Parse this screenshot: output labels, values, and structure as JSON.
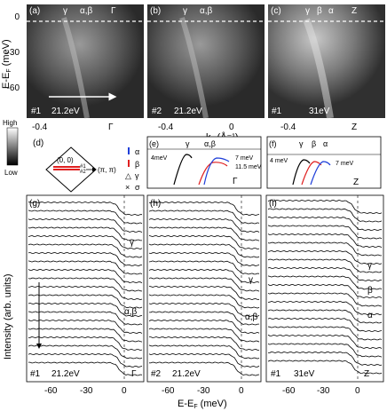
{
  "top_row": {
    "ylabel": "E-E",
    "ylabel_sub": "F",
    "ylabel_unit": " (meV)",
    "yticks": [
      "0",
      "-30",
      "-60"
    ],
    "xlabel": "k",
    "xlabel_sub": "//",
    "xlabel_unit": " (Å⁻¹)",
    "panels": [
      {
        "tag": "(a)",
        "bands": [
          "γ",
          "α,β",
          "Γ"
        ],
        "run": "#1",
        "energy": "21.2eV",
        "xticks": [
          "-0.4",
          "Γ"
        ]
      },
      {
        "tag": "(b)",
        "bands": [
          "γ",
          "α,β"
        ],
        "run": "#2",
        "energy": "21.2eV",
        "xticks": [
          "-0.4",
          "0"
        ]
      },
      {
        "tag": "(c)",
        "bands": [
          "γ",
          "β",
          "α",
          "Z"
        ],
        "run": "#1",
        "energy": "31eV",
        "xticks": [
          "-0.4",
          "Z"
        ]
      }
    ]
  },
  "colorbar": {
    "high": "High",
    "low": "Low"
  },
  "panel_d": {
    "tag": "(d)",
    "origin": "(0, 0)",
    "corner": "(π, π)",
    "cut1": "#1",
    "cut2": "#2",
    "legend": [
      {
        "marker": "|",
        "color": "#1f3fd9",
        "label": "α"
      },
      {
        "marker": "|",
        "color": "#e02020",
        "label": "β"
      },
      {
        "marker": "△",
        "color": "#000000",
        "label": "γ"
      },
      {
        "marker": "×",
        "color": "#000000",
        "label": "σ"
      }
    ]
  },
  "panel_e": {
    "tag": "(e)",
    "bands": [
      "γ",
      "α,β"
    ],
    "gap_left": "4meV",
    "gap_a": "7 meV",
    "gap_b": "11.5 meV",
    "point": "Γ"
  },
  "panel_f": {
    "tag": "(f)",
    "bands": [
      "γ",
      "β",
      "α"
    ],
    "gap_left": "4 meV",
    "gap_right": "7 meV",
    "point": "Z"
  },
  "bottom_row": {
    "ylabel": "Intensity (arb. units)",
    "xlabel": "E-E",
    "xlabel_sub": "F",
    "xlabel_unit": " (meV)",
    "xticks": [
      "-60",
      "-30",
      "0"
    ],
    "panels": [
      {
        "tag": "(g)",
        "run": "#1",
        "energy": "21.2eV",
        "labels": [
          "γ",
          "α,β",
          "Γ"
        ]
      },
      {
        "tag": "(h)",
        "run": "#2",
        "energy": "21.2eV",
        "labels": [
          "γ",
          "α,β"
        ]
      },
      {
        "tag": "(i)",
        "run": "#1",
        "energy": "31eV",
        "labels": [
          "γ",
          "β",
          "α",
          "Z"
        ]
      }
    ]
  },
  "colors": {
    "alpha": "#1f3fd9",
    "beta": "#e02020",
    "gamma": "#000000"
  }
}
